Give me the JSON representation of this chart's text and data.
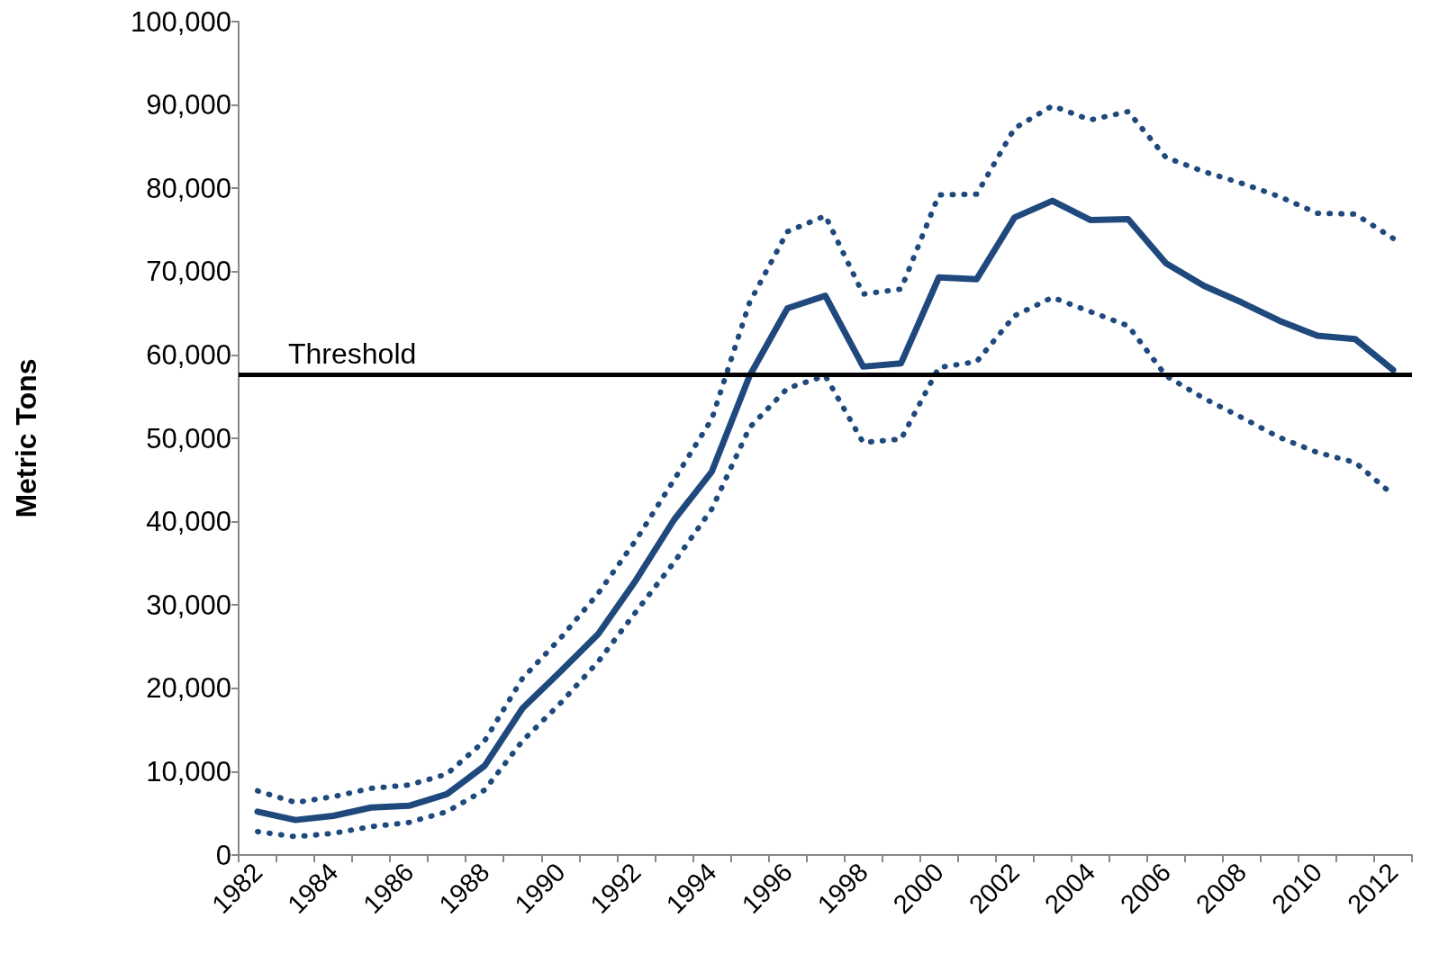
{
  "chart_data": {
    "type": "line",
    "ylabel": "Metric Tons",
    "categories": [
      "1982",
      null,
      "1984",
      null,
      "1986",
      null,
      "1988",
      null,
      "1990",
      null,
      "1992",
      null,
      "1994",
      null,
      "1996",
      null,
      "1998",
      null,
      "2000",
      null,
      "2002",
      null,
      "2004",
      null,
      "2006",
      null,
      "2008",
      null,
      "2010",
      null,
      "2012"
    ],
    "series": [
      {
        "color": "#1f497d",
        "line_style": "solid",
        "values": [
          5200,
          4200,
          4700,
          5700,
          5900,
          7300,
          10700,
          17600,
          22000,
          26500,
          33000,
          40200,
          46000,
          57500,
          65600,
          67100,
          58600,
          59000,
          69300,
          69100,
          76500,
          78500,
          76200,
          76300,
          71000,
          68300,
          66300,
          64100,
          62300,
          61900,
          58200
        ]
      },
      {
        "color": "#1f497d",
        "line_style": "dotted",
        "values": [
          7700,
          6300,
          7000,
          8000,
          8400,
          9700,
          13700,
          21200,
          26000,
          31400,
          37800,
          45000,
          52300,
          66300,
          74800,
          76700,
          67300,
          67900,
          79200,
          79300,
          87200,
          89900,
          88200,
          89200,
          83700,
          82000,
          80600,
          79000,
          77000,
          76900,
          74000
        ]
      },
      {
        "color": "#1f497d",
        "line_style": "dotted",
        "values": [
          2800,
          2200,
          2600,
          3400,
          3900,
          5200,
          7800,
          13700,
          18200,
          23200,
          29200,
          35100,
          41500,
          51300,
          56000,
          57500,
          49500,
          49900,
          58500,
          59200,
          64700,
          66900,
          65200,
          63500,
          57500,
          54800,
          52500,
          50100,
          48300,
          47100,
          43200
        ]
      }
    ],
    "ylim": [
      0,
      100000
    ],
    "yticks": [
      0,
      {
        "value": 10000,
        "label": "10,000"
      },
      {
        "value": 20000,
        "label": "20,000"
      },
      {
        "value": 30000,
        "label": "30,000"
      },
      {
        "value": 40000,
        "label": "40,000"
      },
      {
        "value": 50000,
        "label": "50,000"
      },
      {
        "value": 60000,
        "label": "60,000"
      },
      {
        "value": 70000,
        "label": "70,000"
      },
      {
        "value": 80000,
        "label": "80,000"
      },
      {
        "value": 90000,
        "label": "90,000"
      },
      {
        "value": 100000,
        "label": "100,000"
      }
    ],
    "ref_lines": [
      {
        "axis": "y",
        "value": 57600,
        "label": "Threshold",
        "color": "#000000"
      }
    ],
    "grid": false,
    "marker": "none"
  }
}
